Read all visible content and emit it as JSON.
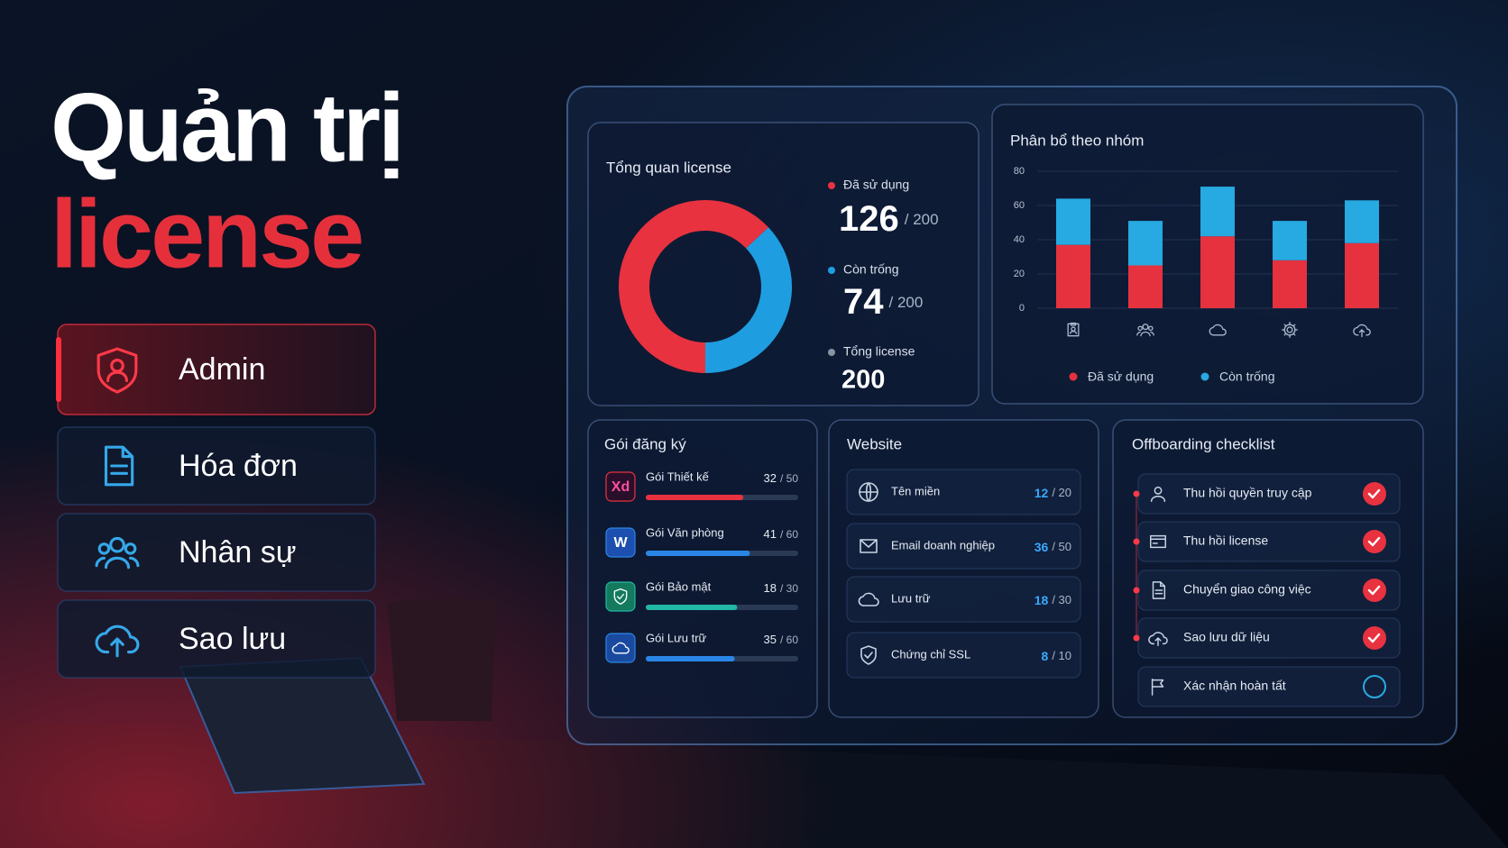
{
  "hero": {
    "title_line1": "Quản trị",
    "title_line2": "license"
  },
  "menu": [
    {
      "label": "Admin",
      "active": true
    },
    {
      "label": "Hóa đơn",
      "active": false
    },
    {
      "label": "Nhân sự",
      "active": false
    },
    {
      "label": "Sao lưu",
      "active": false
    }
  ],
  "chart_data": [
    {
      "type": "donut",
      "title": "Tổng quan license",
      "categories": [
        "Đã sử dụng",
        "Còn trống"
      ],
      "values": [
        126,
        74
      ],
      "colors": [
        "#e8323f",
        "#1e9ee0"
      ],
      "total_of_label": "/ 200",
      "total_name": "Tổng license",
      "total": 200
    },
    {
      "type": "bar",
      "stacked": true,
      "title": "Phân bổ theo nhóm",
      "categories": [
        null,
        null,
        null,
        null,
        null
      ],
      "series": [
        {
          "name": "Đã sử dụng",
          "color": "#e5323e",
          "values": [
            37,
            25,
            42,
            28,
            38
          ]
        },
        {
          "name": "Còn trống",
          "color": "#27a9e1",
          "values": [
            27,
            26,
            29,
            23,
            25
          ]
        }
      ],
      "ylim": [
        0,
        80
      ],
      "yticks": [
        0,
        20,
        40,
        60,
        80
      ],
      "grid": true,
      "legend": "bottom"
    }
  ],
  "subscriptions": {
    "title": "Gói đăng ký",
    "items": [
      {
        "icon_text": "Xd",
        "name": "Gói Thiết kế",
        "used": 32,
        "total": 50,
        "total_label": "/ 50",
        "color": "#e8323f"
      },
      {
        "icon_text": "W",
        "name": "Gói Văn phòng",
        "used": 41,
        "total": 60,
        "total_label": "/ 60",
        "color": "#2a86e6"
      },
      {
        "name": "Gói Bảo mật",
        "used": 18,
        "total": 30,
        "total_label": "/ 30",
        "color": "#22b8a6"
      },
      {
        "name": "Gói Lưu trữ",
        "used": 35,
        "total": 60,
        "total_label": "/ 60",
        "color": "#2a86e6"
      }
    ]
  },
  "website": {
    "title": "Website",
    "items": [
      {
        "name": "Tên miền",
        "used": 12,
        "total": 20,
        "total_label": "/ 20"
      },
      {
        "name": "Email doanh nghiệp",
        "used": 36,
        "total": 50,
        "total_label": "/ 50"
      },
      {
        "name": "Lưu trữ",
        "used": 18,
        "total": 30,
        "total_label": "/ 30"
      },
      {
        "name": "Chứng chỉ SSL",
        "used": 8,
        "total": 10,
        "total_label": "/ 10"
      }
    ]
  },
  "checklist": {
    "title": "Offboarding checklist",
    "items": [
      {
        "label": "Thu hồi quyền truy cập",
        "done": true
      },
      {
        "label": "Thu hồi license",
        "done": true
      },
      {
        "label": "Chuyển giao công việc",
        "done": true
      },
      {
        "label": "Sao lưu dữ liệu",
        "done": true
      },
      {
        "label": "Xác nhận hoàn tất",
        "done": false
      }
    ]
  }
}
